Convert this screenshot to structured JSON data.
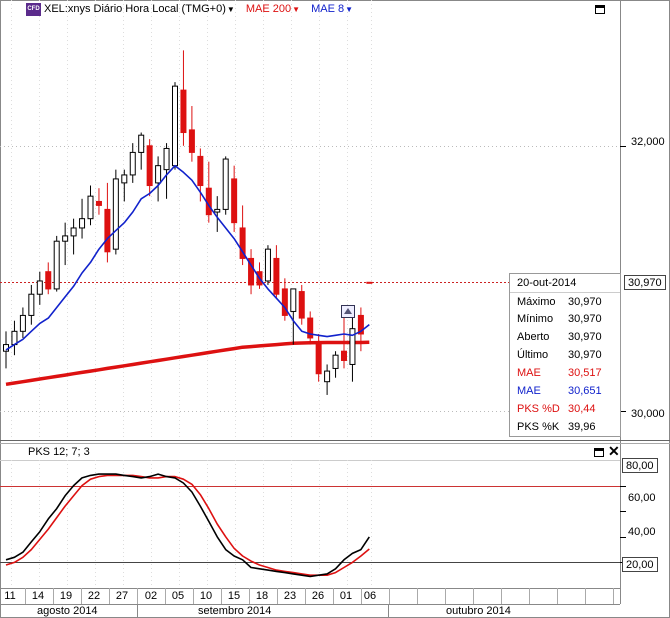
{
  "header": {
    "badge": "CFD",
    "symbol_label": "XEL:xnys Diário Hora Local (TMG+0)",
    "ma200_label": "MAE 200",
    "ma8_label": "MAE 8"
  },
  "colors": {
    "up_candle": "#000000",
    "down_candle": "#dd1111",
    "ma200": "#dd1111",
    "ma8": "#1122cc",
    "stoch_k": "#000000",
    "stoch_d": "#dd1111",
    "grid": "#bbbbbb",
    "last_price_line": "#cc2222"
  },
  "price_axis": {
    "labels": [
      "32,000",
      "30,000"
    ]
  },
  "last_price": "30,970",
  "info_box": {
    "date": "20-out-2014",
    "rows": [
      {
        "label": "Máximo",
        "value": "30,970",
        "color": "#000000"
      },
      {
        "label": "Mínimo",
        "value": "30,970",
        "color": "#000000"
      },
      {
        "label": "Aberto",
        "value": "30,970",
        "color": "#000000"
      },
      {
        "label": "Último",
        "value": "30,970",
        "color": "#000000"
      },
      {
        "label": "MAE",
        "value": "30,517",
        "color": "#dd1111"
      },
      {
        "label": "MAE",
        "value": "30,651",
        "color": "#1122cc"
      },
      {
        "label": "PKS %D",
        "value": "30,44",
        "color": "#dd1111"
      },
      {
        "label": "PKS %K",
        "value": "39,96",
        "color": "#000000"
      }
    ]
  },
  "stoch_panel": {
    "title": "PKS 12; 7; 3",
    "axis_labels": [
      "80,00",
      "60,00",
      "40,00",
      "20,00"
    ],
    "upper_level": 80,
    "lower_level": 20
  },
  "x_axis": {
    "day_labels": [
      "11",
      "14",
      "19",
      "22",
      "27",
      "02",
      "05",
      "10",
      "15",
      "18",
      "23",
      "26",
      "01",
      "06"
    ],
    "month_labels": [
      "agosto 2014",
      "setembro 2014",
      "outubro 2014"
    ]
  },
  "chart_data": [
    {
      "type": "candlestick",
      "title": "XEL:xnys Diário Hora Local (TMG+0)",
      "y_axis_ticks": [
        30.0,
        32.0
      ],
      "ylim": [
        29.78,
        33.1
      ],
      "last_value": 30.97,
      "candles": [
        {
          "o": 30.45,
          "h": 30.6,
          "l": 30.32,
          "c": 30.5,
          "dir": "up"
        },
        {
          "o": 30.5,
          "h": 30.68,
          "l": 30.42,
          "c": 30.6,
          "dir": "up"
        },
        {
          "o": 30.6,
          "h": 30.78,
          "l": 30.55,
          "c": 30.72,
          "dir": "up"
        },
        {
          "o": 30.72,
          "h": 30.95,
          "l": 30.65,
          "c": 30.88,
          "dir": "up"
        },
        {
          "o": 30.88,
          "h": 31.05,
          "l": 30.8,
          "c": 30.98,
          "dir": "up"
        },
        {
          "o": 31.05,
          "h": 31.12,
          "l": 30.88,
          "c": 30.92,
          "dir": "down"
        },
        {
          "o": 30.92,
          "h": 31.32,
          "l": 30.9,
          "c": 31.28,
          "dir": "up"
        },
        {
          "o": 31.28,
          "h": 31.42,
          "l": 31.1,
          "c": 31.32,
          "dir": "up"
        },
        {
          "o": 31.32,
          "h": 31.45,
          "l": 31.18,
          "c": 31.38,
          "dir": "up"
        },
        {
          "o": 31.38,
          "h": 31.6,
          "l": 31.3,
          "c": 31.45,
          "dir": "up"
        },
        {
          "o": 31.45,
          "h": 31.7,
          "l": 31.4,
          "c": 31.62,
          "dir": "up"
        },
        {
          "o": 31.58,
          "h": 31.68,
          "l": 31.48,
          "c": 31.55,
          "dir": "down"
        },
        {
          "o": 31.52,
          "h": 31.72,
          "l": 31.12,
          "c": 31.2,
          "dir": "down"
        },
        {
          "o": 31.22,
          "h": 31.82,
          "l": 31.18,
          "c": 31.75,
          "dir": "up"
        },
        {
          "o": 31.72,
          "h": 31.82,
          "l": 31.58,
          "c": 31.78,
          "dir": "up"
        },
        {
          "o": 31.78,
          "h": 32.02,
          "l": 31.72,
          "c": 31.95,
          "dir": "up"
        },
        {
          "o": 31.95,
          "h": 32.1,
          "l": 31.82,
          "c": 32.08,
          "dir": "up"
        },
        {
          "o": 32.0,
          "h": 32.05,
          "l": 31.62,
          "c": 31.7,
          "dir": "down"
        },
        {
          "o": 31.72,
          "h": 31.92,
          "l": 31.58,
          "c": 31.85,
          "dir": "up"
        },
        {
          "o": 31.82,
          "h": 32.02,
          "l": 31.6,
          "c": 31.98,
          "dir": "up"
        },
        {
          "o": 31.85,
          "h": 32.48,
          "l": 31.82,
          "c": 32.45,
          "dir": "up"
        },
        {
          "o": 32.42,
          "h": 32.72,
          "l": 32.0,
          "c": 32.1,
          "dir": "down"
        },
        {
          "o": 32.12,
          "h": 32.3,
          "l": 31.88,
          "c": 31.95,
          "dir": "down"
        },
        {
          "o": 31.92,
          "h": 31.98,
          "l": 31.58,
          "c": 31.7,
          "dir": "down"
        },
        {
          "o": 31.68,
          "h": 31.88,
          "l": 31.42,
          "c": 31.48,
          "dir": "down"
        },
        {
          "o": 31.5,
          "h": 31.62,
          "l": 31.35,
          "c": 31.52,
          "dir": "up"
        },
        {
          "o": 31.52,
          "h": 31.92,
          "l": 31.48,
          "c": 31.9,
          "dir": "up"
        },
        {
          "o": 31.75,
          "h": 31.85,
          "l": 31.35,
          "c": 31.42,
          "dir": "down"
        },
        {
          "o": 31.38,
          "h": 31.55,
          "l": 31.1,
          "c": 31.15,
          "dir": "down"
        },
        {
          "o": 31.15,
          "h": 31.22,
          "l": 30.88,
          "c": 30.95,
          "dir": "down"
        },
        {
          "o": 30.95,
          "h": 31.12,
          "l": 30.92,
          "c": 31.05,
          "dir": "down"
        },
        {
          "o": 30.98,
          "h": 31.25,
          "l": 30.95,
          "c": 31.22,
          "dir": "up"
        },
        {
          "o": 31.15,
          "h": 31.25,
          "l": 30.85,
          "c": 30.88,
          "dir": "down"
        },
        {
          "o": 30.92,
          "h": 31.0,
          "l": 30.68,
          "c": 30.72,
          "dir": "down"
        },
        {
          "o": 30.75,
          "h": 30.9,
          "l": 30.5,
          "c": 30.92,
          "dir": "up"
        },
        {
          "o": 30.9,
          "h": 30.95,
          "l": 30.65,
          "c": 30.7,
          "dir": "down"
        },
        {
          "o": 30.7,
          "h": 30.75,
          "l": 30.5,
          "c": 30.55,
          "dir": "down"
        },
        {
          "o": 30.52,
          "h": 30.58,
          "l": 30.22,
          "c": 30.28,
          "dir": "down"
        },
        {
          "o": 30.22,
          "h": 30.35,
          "l": 30.12,
          "c": 30.3,
          "dir": "up"
        },
        {
          "o": 30.32,
          "h": 30.45,
          "l": 30.25,
          "c": 30.42,
          "dir": "up"
        },
        {
          "o": 30.38,
          "h": 30.72,
          "l": 30.32,
          "c": 30.45,
          "dir": "down"
        },
        {
          "o": 30.35,
          "h": 30.72,
          "l": 30.22,
          "c": 30.62,
          "dir": "up"
        },
        {
          "o": 30.72,
          "h": 30.78,
          "l": 30.45,
          "c": 30.58,
          "dir": "down"
        },
        {
          "o": 30.97,
          "h": 30.97,
          "l": 30.97,
          "c": 30.97,
          "dir": "down"
        }
      ],
      "series": [
        {
          "name": "MAE 200",
          "values": [
            30.2,
            30.21,
            30.22,
            30.23,
            30.24,
            30.25,
            30.26,
            30.27,
            30.28,
            30.29,
            30.3,
            30.31,
            30.32,
            30.33,
            30.34,
            30.35,
            30.36,
            30.37,
            30.38,
            30.39,
            30.4,
            30.41,
            30.42,
            30.43,
            30.44,
            30.45,
            30.46,
            30.47,
            30.48,
            30.485,
            30.49,
            30.495,
            30.5,
            30.505,
            30.51,
            30.512,
            30.514,
            30.515,
            30.516,
            30.516,
            30.516,
            30.516,
            30.516,
            30.517
          ]
        },
        {
          "name": "MAE 8",
          "values": [
            30.46,
            30.5,
            30.54,
            30.6,
            30.66,
            30.7,
            30.78,
            30.86,
            30.94,
            31.04,
            31.12,
            31.22,
            31.3,
            31.36,
            31.42,
            31.5,
            31.6,
            31.64,
            31.7,
            31.78,
            31.85,
            31.8,
            31.74,
            31.65,
            31.55,
            31.46,
            31.38,
            31.3,
            31.2,
            31.1,
            31.0,
            30.92,
            30.85,
            30.78,
            30.68,
            30.6,
            30.58,
            30.57,
            30.56,
            30.57,
            30.58,
            30.57,
            30.6,
            30.651
          ]
        }
      ]
    },
    {
      "type": "line",
      "title": "PKS 12; 7; 3",
      "y_axis_ticks": [
        20,
        40,
        60,
        80
      ],
      "ylim": [
        0,
        100
      ],
      "reference_lines": [
        80,
        20
      ],
      "series": [
        {
          "name": "PKS %K",
          "values": [
            22,
            24,
            28,
            36,
            44,
            54,
            62,
            72,
            80,
            86,
            88,
            89,
            89,
            89,
            88,
            87,
            86,
            87,
            89,
            87,
            86,
            82,
            75,
            64,
            52,
            40,
            30,
            25,
            22,
            16,
            15,
            14,
            13,
            12,
            11,
            10,
            9,
            10,
            11,
            15,
            22,
            27,
            30,
            39.96
          ]
        },
        {
          "name": "PKS %D",
          "values": [
            18,
            20,
            24,
            30,
            38,
            46,
            55,
            64,
            72,
            80,
            85,
            87,
            88,
            88,
            88,
            88,
            87,
            86,
            86,
            87,
            87,
            85,
            81,
            73,
            62,
            50,
            40,
            31,
            25,
            21,
            18,
            16,
            14,
            13,
            12,
            11,
            10,
            10,
            10,
            12,
            16,
            20,
            25,
            30.44
          ]
        }
      ]
    }
  ]
}
